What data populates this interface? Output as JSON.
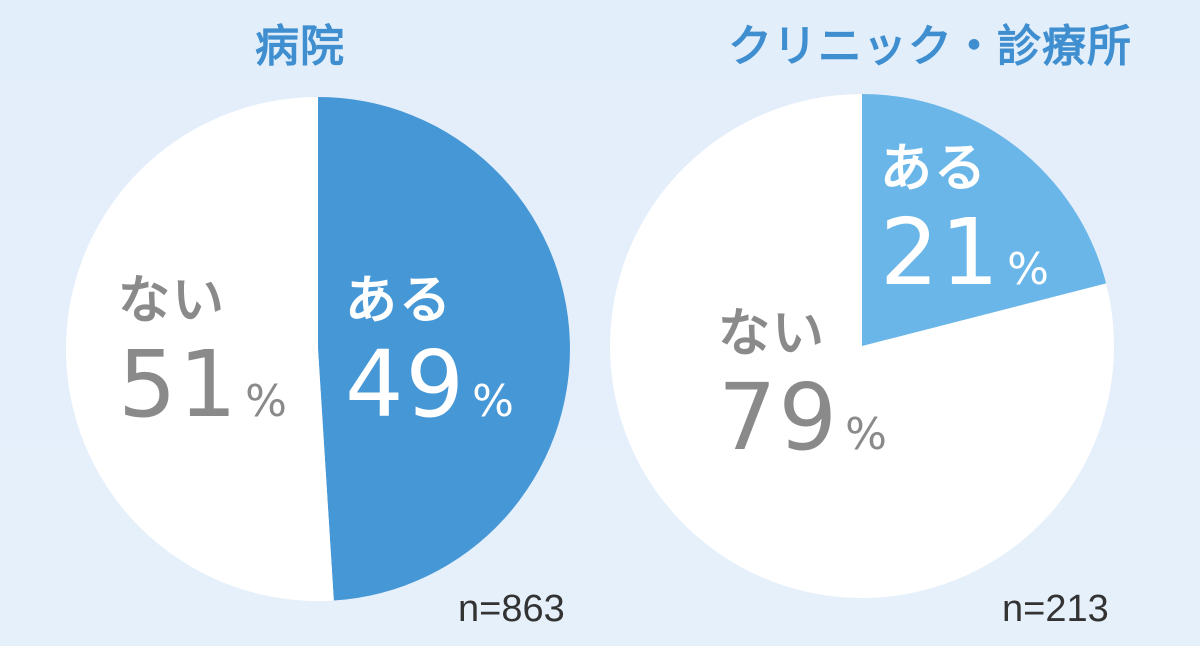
{
  "chart_data": [
    {
      "type": "pie",
      "title": "病院",
      "n_label": "n=863",
      "unit": "%",
      "slices": [
        {
          "label": "ある",
          "value": 49,
          "color": "#4697d6"
        },
        {
          "label": "ない",
          "value": 51,
          "color": "#ffffff"
        }
      ]
    },
    {
      "type": "pie",
      "title": "クリニック・診療所",
      "n_label": "n=213",
      "unit": "%",
      "slices": [
        {
          "label": "ある",
          "value": 21,
          "color": "#6ab6e8"
        },
        {
          "label": "ない",
          "value": 79,
          "color": "#ffffff"
        }
      ]
    }
  ]
}
